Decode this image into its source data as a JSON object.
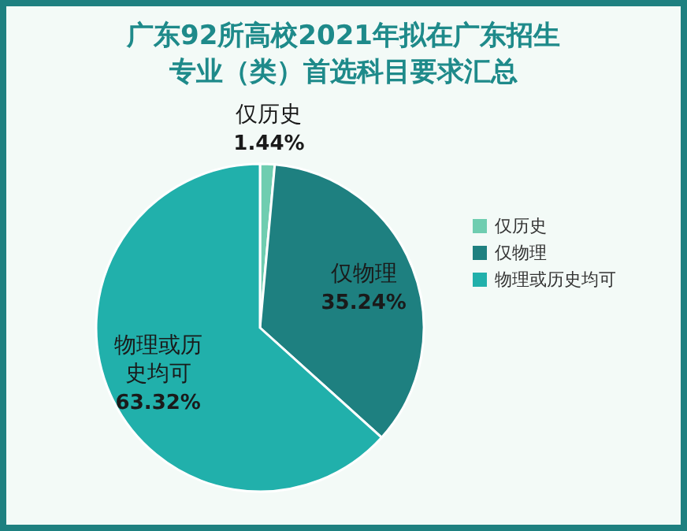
{
  "chart_data": {
    "type": "pie",
    "title": "广东92所高校2021年拟在广东招生",
    "subtitle": "专业（类）首选科目要求汇总",
    "categories": [
      "仅历史",
      "仅物理",
      "物理或历史均可"
    ],
    "values": [
      1.44,
      35.24,
      63.32
    ],
    "value_labels": [
      "1.44%",
      "35.24%",
      "63.32%"
    ],
    "colors": [
      "#6fcdb0",
      "#1e8080",
      "#21b0ab"
    ],
    "legend": "right"
  }
}
